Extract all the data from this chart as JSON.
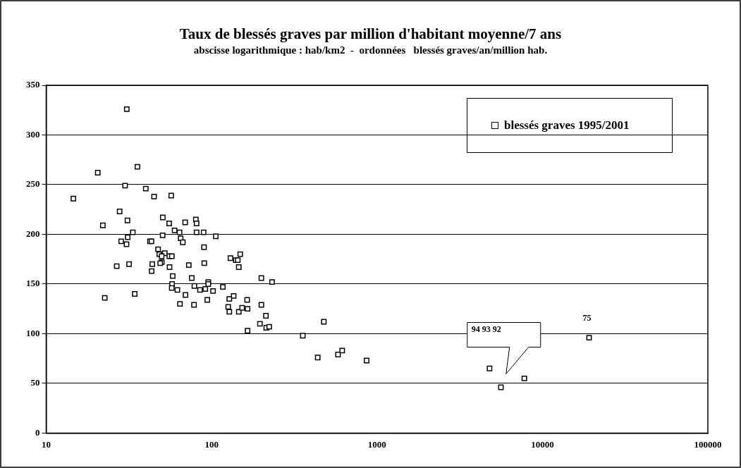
{
  "chart_data": {
    "type": "scatter",
    "title": "Taux de blessés graves par million d'habitant moyenne/7 ans",
    "subtitle": "abscisse logarithmique : hab/km2  -  ordonnées   blessés graves/an/million hab.",
    "log": "x",
    "grid": "y",
    "legend": "top right",
    "marker": "square",
    "xlim": [
      10,
      100000
    ],
    "xticks": [
      10,
      100,
      1000,
      10000,
      100000
    ],
    "ylim": [
      0,
      350
    ],
    "yticks": [
      0,
      50,
      100,
      150,
      200,
      250,
      300,
      350
    ],
    "series": [
      {
        "name": "blessés graves 1995/2001",
        "color": "#000000",
        "x": [
          30.7,
          20.5,
          35.6,
          30,
          40,
          44.9,
          57,
          14.6,
          27.8,
          31,
          50.7,
          55.4,
          69.2,
          80.3,
          81.1,
          22,
          33.4,
          31.1,
          28.4,
          30.6,
          42.4,
          43.3,
          50.6,
          59.7,
          64,
          65,
          67,
          81.1,
          89.5,
          47.5,
          48.3,
          52.1,
          49.9,
          55.5,
          57.5,
          90,
          50,
          48.9,
          43.8,
          43.4,
          55.7,
          72.8,
          90.3,
          26.7,
          31.7,
          58.2,
          75.9,
          57.7,
          57.4,
          62.1,
          69.5,
          78.7,
          85.1,
          91.6,
          95.5,
          95.5,
          102,
          94.2,
          34.3,
          22.6,
          64.4,
          78.3,
          106,
          130,
          149,
          140,
          144,
          146,
          117,
          200,
          232,
          136,
          128,
          126,
          128,
          164,
          146,
          153,
          165,
          200,
          213,
          196,
          214,
          223,
          165,
          477,
          356,
          438,
          581,
          616,
          865,
          4790,
          7770,
          5610,
          19140
        ],
        "values": [
          326,
          262,
          268,
          249,
          246,
          238,
          239,
          236,
          223,
          214,
          217,
          211,
          212,
          215,
          211,
          209,
          202,
          197,
          193,
          190,
          193,
          193,
          199,
          204,
          202,
          196,
          192,
          202,
          202,
          185,
          180,
          181,
          178,
          178,
          178,
          187,
          172,
          171,
          170,
          163,
          167,
          169,
          171,
          168,
          170,
          158,
          156,
          150,
          146,
          144,
          139,
          148,
          144,
          145,
          152,
          150,
          143,
          134,
          140,
          136,
          130,
          129,
          198,
          176,
          180,
          174,
          174,
          167,
          147,
          156,
          152,
          138,
          135,
          127,
          122,
          134,
          122,
          126,
          125,
          129,
          118,
          110,
          106,
          107,
          103,
          112,
          98,
          76,
          79,
          83,
          73,
          65,
          55,
          46,
          96
        ]
      }
    ],
    "annotations": [
      "94 93 92",
      {
        "text": "75",
        "x": 19140,
        "y": 96
      }
    ]
  }
}
